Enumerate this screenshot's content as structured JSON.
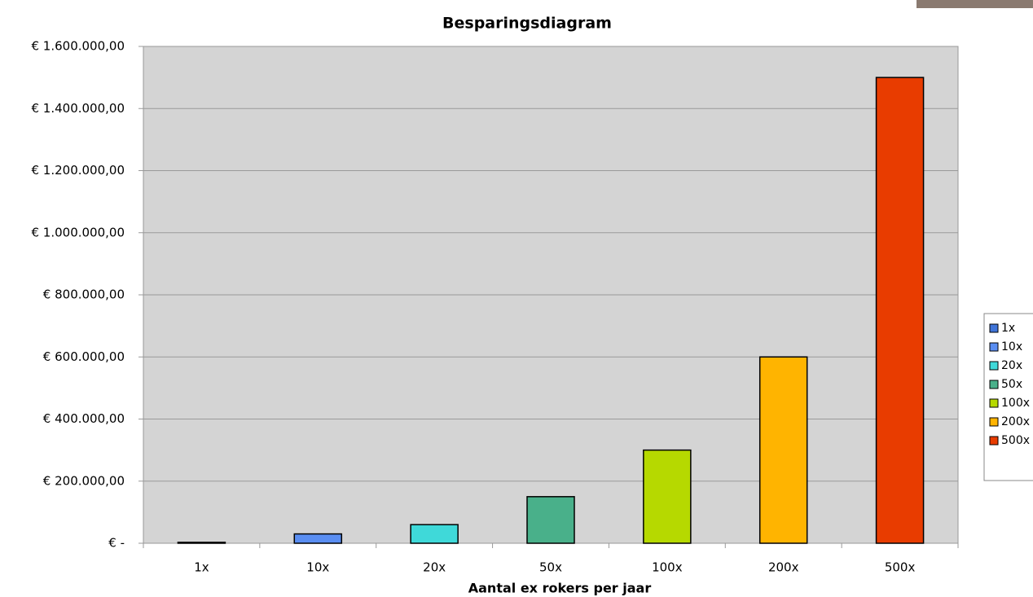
{
  "chart_data": {
    "type": "bar",
    "title": "Besparingsdiagram",
    "x_label": "Aantal ex rokers per jaar",
    "categories": [
      "1x",
      "10x",
      "20x",
      "50x",
      "100x",
      "200x",
      "500x"
    ],
    "values": [
      3000,
      30000,
      60000,
      150000,
      300000,
      600000,
      1500000
    ],
    "colors": [
      "#3f74d8",
      "#5a8ef2",
      "#3fd9d9",
      "#49b08a",
      "#b6d900",
      "#ffb400",
      "#e83c00"
    ],
    "ylim": [
      0,
      1600000
    ],
    "yticks": [
      {
        "value": 0,
        "label": "€ -"
      },
      {
        "value": 200000,
        "label": "€ 200.000,00"
      },
      {
        "value": 400000,
        "label": "€ 400.000,00"
      },
      {
        "value": 600000,
        "label": "€ 600.000,00"
      },
      {
        "value": 800000,
        "label": "€ 800.000,00"
      },
      {
        "value": 1000000,
        "label": "€ 1.000.000,00"
      },
      {
        "value": 1200000,
        "label": "€ 1.200.000,00"
      },
      {
        "value": 1400000,
        "label": "€ 1.400.000,00"
      },
      {
        "value": 1600000,
        "label": "€ 1.600.000,00"
      }
    ],
    "grid": true,
    "legend": "right"
  }
}
